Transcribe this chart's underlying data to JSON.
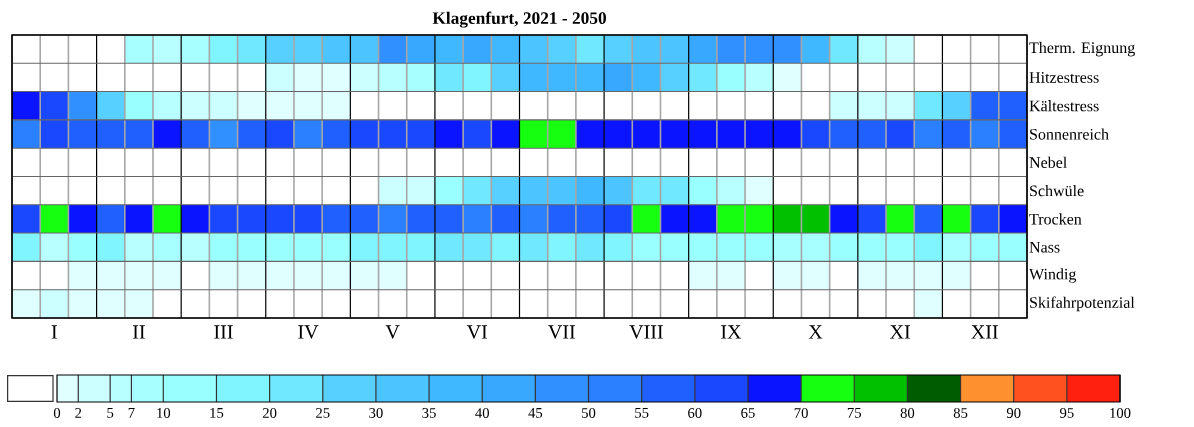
{
  "chart_data": {
    "type": "heatmap",
    "title": "Klagenfurt, 2021 - 2050",
    "categories": [
      null,
      "I",
      null,
      null,
      "II",
      null,
      null,
      "III",
      null,
      null,
      "IV",
      null,
      null,
      "V",
      null,
      null,
      "VI",
      null,
      null,
      "VII",
      null,
      null,
      "VIII",
      null,
      null,
      "IX",
      null,
      null,
      "X",
      null,
      null,
      "XI",
      null,
      null,
      "XII",
      null
    ],
    "y_categories": [
      "Therm. Eignung",
      "Hitzestress",
      "Kältestress",
      "Sonnenreich",
      "Nebel",
      "Schwüle",
      "Trocken",
      "Nass",
      "Windig",
      "Skifahrpotenzial"
    ],
    "cells": [
      [
        null,
        null,
        null,
        null,
        8.5,
        6,
        8.5,
        17.5,
        22.5,
        27.5,
        27.5,
        32.5,
        32.5,
        47.5,
        42.5,
        37.5,
        42.5,
        37.5,
        32.5,
        27.5,
        22.5,
        27.5,
        32.5,
        32.5,
        42.5,
        47.5,
        47.5,
        47.5,
        37.5,
        22.5,
        6,
        3.5,
        null,
        null,
        null,
        null
      ],
      [
        null,
        null,
        null,
        null,
        null,
        null,
        null,
        null,
        null,
        3.5,
        1,
        1,
        3.5,
        6,
        8.5,
        22.5,
        17.5,
        27.5,
        37.5,
        37.5,
        37.5,
        42.5,
        37.5,
        27.5,
        22.5,
        12.5,
        6,
        1,
        null,
        null,
        null,
        null,
        null,
        null,
        null,
        null
      ],
      [
        67.5,
        62.5,
        47.5,
        27.5,
        12.5,
        6,
        3.5,
        3.5,
        1,
        1,
        1,
        1,
        null,
        null,
        null,
        null,
        null,
        null,
        null,
        null,
        null,
        null,
        null,
        null,
        null,
        null,
        null,
        null,
        null,
        3.5,
        3.5,
        3.5,
        22.5,
        27.5,
        57.5,
        57.5
      ],
      [
        52.5,
        62.5,
        57.5,
        57.5,
        57.5,
        67.5,
        57.5,
        47.5,
        57.5,
        62.5,
        52.5,
        57.5,
        62.5,
        62.5,
        62.5,
        67.5,
        62.5,
        67.5,
        72.5,
        72.5,
        67.5,
        67.5,
        67.5,
        67.5,
        67.5,
        67.5,
        67.5,
        67.5,
        62.5,
        57.5,
        57.5,
        62.5,
        52.5,
        57.5,
        52.5,
        57.5
      ],
      [
        null,
        null,
        null,
        null,
        null,
        null,
        null,
        null,
        null,
        null,
        null,
        null,
        null,
        null,
        null,
        null,
        null,
        null,
        null,
        null,
        null,
        null,
        null,
        null,
        null,
        null,
        null,
        null,
        null,
        null,
        null,
        null,
        null,
        null,
        null,
        null
      ],
      [
        null,
        null,
        null,
        null,
        null,
        null,
        null,
        null,
        null,
        null,
        null,
        null,
        null,
        3.5,
        3.5,
        12.5,
        22.5,
        27.5,
        32.5,
        32.5,
        37.5,
        32.5,
        22.5,
        22.5,
        12.5,
        6,
        1,
        null,
        null,
        null,
        null,
        null,
        null,
        null,
        null,
        null
      ],
      [
        62.5,
        72.5,
        67.5,
        57.5,
        67.5,
        72.5,
        67.5,
        62.5,
        62.5,
        62.5,
        62.5,
        57.5,
        57.5,
        52.5,
        57.5,
        57.5,
        52.5,
        57.5,
        52.5,
        57.5,
        57.5,
        62.5,
        72.5,
        67.5,
        67.5,
        72.5,
        72.5,
        77.5,
        77.5,
        67.5,
        62.5,
        72.5,
        57.5,
        72.5,
        62.5,
        67.5
      ],
      [
        17.5,
        6,
        12.5,
        17.5,
        6,
        8.5,
        6,
        12.5,
        12.5,
        12.5,
        12.5,
        12.5,
        17.5,
        17.5,
        17.5,
        22.5,
        22.5,
        17.5,
        22.5,
        17.5,
        22.5,
        17.5,
        12.5,
        12.5,
        12.5,
        12.5,
        12.5,
        8.5,
        8.5,
        12.5,
        12.5,
        12.5,
        17.5,
        8.5,
        12.5,
        12.5
      ],
      [
        null,
        null,
        1,
        1,
        1,
        1,
        null,
        1,
        1,
        1,
        1,
        1,
        1,
        1,
        null,
        null,
        null,
        null,
        null,
        null,
        null,
        null,
        null,
        null,
        1,
        1,
        null,
        1,
        1,
        null,
        1,
        1,
        1,
        1,
        null,
        null
      ],
      [
        1,
        3.5,
        1,
        1,
        1,
        null,
        null,
        null,
        null,
        null,
        null,
        null,
        null,
        null,
        null,
        null,
        null,
        null,
        null,
        null,
        null,
        null,
        null,
        null,
        null,
        null,
        null,
        null,
        null,
        null,
        null,
        null,
        1,
        null,
        null,
        null
      ]
    ],
    "clim": [
      0,
      100
    ],
    "cticks": [
      0,
      2,
      5,
      7,
      10,
      15,
      20,
      25,
      30,
      35,
      40,
      45,
      50,
      55,
      60,
      65,
      70,
      75,
      80,
      85,
      90,
      95,
      100
    ],
    "colors": [
      "#ffffff",
      "#e0ffff",
      "#ccffff",
      "#b8ffff",
      "#a8ffff",
      "#99ffff",
      "#80f5ff",
      "#70e8ff",
      "#58d0ff",
      "#4cc4ff",
      "#40b8ff",
      "#38a8ff",
      "#3090ff",
      "#2a80ff",
      "#2060ff",
      "#1a48ff",
      "#0a14ff",
      "#16ff10",
      "#00c000",
      "#005c00",
      "#ff9030",
      "#ff5020",
      "#ff2010"
    ]
  }
}
